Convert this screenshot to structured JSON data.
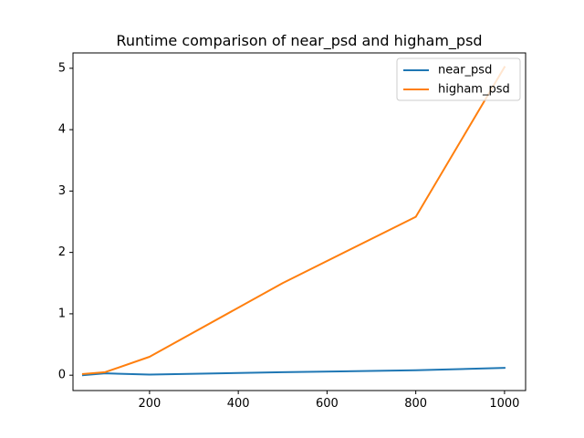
{
  "chart_data": {
    "type": "line",
    "title": "Runtime comparison of near_psd and higham_psd",
    "xlabel": "",
    "ylabel": "",
    "xlim": [
      27.5,
      1047.5
    ],
    "ylim": [
      -0.25,
      5.25
    ],
    "x_ticks": [
      200,
      400,
      600,
      800,
      1000
    ],
    "y_ticks": [
      0,
      1,
      2,
      3,
      4,
      5
    ],
    "x_tick_labels": [
      "200",
      "400",
      "600",
      "800",
      "1000"
    ],
    "y_tick_labels": [
      "0",
      "1",
      "2",
      "3",
      "4",
      "5"
    ],
    "grid": false,
    "legend_position": "top-right",
    "series": [
      {
        "name": "near_psd",
        "color": "#1f77b4",
        "x": [
          50,
          100,
          200,
          500,
          800,
          1000
        ],
        "y": [
          0.0,
          0.03,
          0.01,
          0.05,
          0.08,
          0.12
        ]
      },
      {
        "name": "higham_psd",
        "color": "#ff7f0e",
        "x": [
          50,
          100,
          200,
          500,
          800,
          1000
        ],
        "y": [
          0.02,
          0.05,
          0.3,
          1.5,
          2.58,
          5.02
        ]
      }
    ]
  }
}
